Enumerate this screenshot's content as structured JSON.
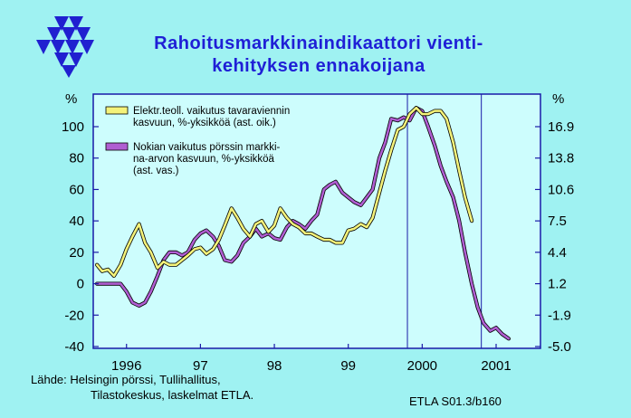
{
  "title": {
    "line1": "Rahoitusmarkkinaindikaattori vienti-",
    "line2": "kehityksen ennakoijana"
  },
  "footer": {
    "source_line1": "Lähde: Helsingin pörssi, Tullihallitus,",
    "source_line2": "Tilastokeskus, laskelmat ETLA.",
    "code": "ETLA S01.3/b160"
  },
  "colors": {
    "background": "#9ff2f2",
    "plot_background": "#cdfdfd",
    "title": "#1f1fd6",
    "series_export": "#f4f27a",
    "series_nokia": "#b05ed2",
    "frame": "#1a1aa8"
  },
  "chart_data": {
    "type": "line",
    "x_unit": "year",
    "xlim": [
      1995.55,
      2001.6
    ],
    "x_ticks": [
      "1996",
      "97",
      "98",
      "99",
      "2000",
      "2001"
    ],
    "x_tick_positions": [
      1996,
      1997,
      1998,
      1999,
      2000,
      2001
    ],
    "gridlines_x": [
      1999.8,
      2000.8
    ],
    "y_left": {
      "label": "%",
      "ylim": [
        -40,
        110
      ],
      "ticks": [
        "100",
        "80",
        "60",
        "40",
        "20",
        "0",
        "-20",
        "-40"
      ]
    },
    "y_right": {
      "label": "%",
      "ticks": [
        "16.9",
        "13.8",
        "10.6",
        "7.5",
        "4.4",
        "1.2",
        "-1.9",
        "-5.0"
      ]
    },
    "grid": false,
    "legend_position": "top-left",
    "series": [
      {
        "name": "Elektr.teoll. vaikutus tavaraviennin kasvuun, %-yksikköä (ast. oik.)",
        "legend_lines": [
          "Elektr.teoll. vaikutus tavaraviennin",
          "kasvuun, %-yksikköä (ast. oik.)"
        ],
        "axis": "right",
        "x": [
          1995.6,
          1995.67,
          1995.75,
          1995.83,
          1995.92,
          1996.0,
          1996.08,
          1996.17,
          1996.25,
          1996.33,
          1996.42,
          1996.5,
          1996.58,
          1996.67,
          1996.75,
          1996.83,
          1996.92,
          1997.0,
          1997.08,
          1997.17,
          1997.25,
          1997.33,
          1997.42,
          1997.5,
          1997.58,
          1997.67,
          1997.75,
          1997.83,
          1997.92,
          1998.0,
          1998.08,
          1998.17,
          1998.25,
          1998.33,
          1998.42,
          1998.5,
          1998.58,
          1998.67,
          1998.75,
          1998.83,
          1998.92,
          1999.0,
          1999.08,
          1999.17,
          1999.25,
          1999.33,
          1999.42,
          1999.5,
          1999.58,
          1999.67,
          1999.75,
          1999.83,
          1999.92,
          2000.0,
          2000.08,
          2000.17,
          2000.25,
          2000.33,
          2000.42,
          2000.5,
          2000.58,
          2000.67
        ],
        "y": [
          12,
          8,
          9,
          5,
          12,
          22,
          30,
          38,
          26,
          20,
          10,
          14,
          12,
          12,
          15,
          18,
          22,
          23,
          19,
          22,
          28,
          37,
          48,
          42,
          35,
          30,
          38,
          40,
          33,
          37,
          48,
          42,
          38,
          36,
          32,
          32,
          30,
          28,
          28,
          26,
          26,
          34,
          35,
          38,
          36,
          42,
          58,
          72,
          85,
          98,
          100,
          108,
          112,
          108,
          108,
          110,
          110,
          105,
          90,
          72,
          55,
          40
        ]
      },
      {
        "name": "Nokian vaikutus pörssin markkina-arvon kasvuun, %-yksikköä (ast. vas.)",
        "legend_lines": [
          "Nokian vaikutus pörssin markki-",
          "na-arvon kasvuun, %-yksikköä",
          "(ast. vas.)"
        ],
        "axis": "left",
        "x": [
          1995.6,
          1995.75,
          1995.92,
          1996.0,
          1996.08,
          1996.17,
          1996.25,
          1996.33,
          1996.42,
          1996.5,
          1996.58,
          1996.67,
          1996.75,
          1996.83,
          1996.92,
          1997.0,
          1997.08,
          1997.17,
          1997.25,
          1997.33,
          1997.42,
          1997.5,
          1997.58,
          1997.67,
          1997.75,
          1997.83,
          1997.92,
          1998.0,
          1998.08,
          1998.17,
          1998.25,
          1998.33,
          1998.42,
          1998.5,
          1998.58,
          1998.67,
          1998.75,
          1998.83,
          1998.92,
          1999.0,
          1999.08,
          1999.17,
          1999.25,
          1999.33,
          1999.42,
          1999.5,
          1999.58,
          1999.67,
          1999.75,
          1999.83,
          1999.92,
          2000.0,
          2000.08,
          2000.17,
          2000.25,
          2000.33,
          2000.42,
          2000.5,
          2000.58,
          2000.67,
          2000.75,
          2000.83,
          2000.92,
          2001.0,
          2001.08,
          2001.17
        ],
        "y": [
          0,
          0,
          0,
          -5,
          -12,
          -14,
          -12,
          -5,
          5,
          15,
          20,
          20,
          18,
          20,
          28,
          32,
          34,
          30,
          24,
          15,
          14,
          18,
          26,
          30,
          35,
          30,
          32,
          29,
          28,
          36,
          40,
          38,
          35,
          40,
          44,
          60,
          63,
          65,
          58,
          55,
          52,
          50,
          55,
          60,
          80,
          90,
          105,
          104,
          106,
          104,
          112,
          110,
          100,
          88,
          75,
          65,
          55,
          40,
          20,
          0,
          -15,
          -25,
          -30,
          -28,
          -32,
          -35
        ]
      }
    ]
  }
}
